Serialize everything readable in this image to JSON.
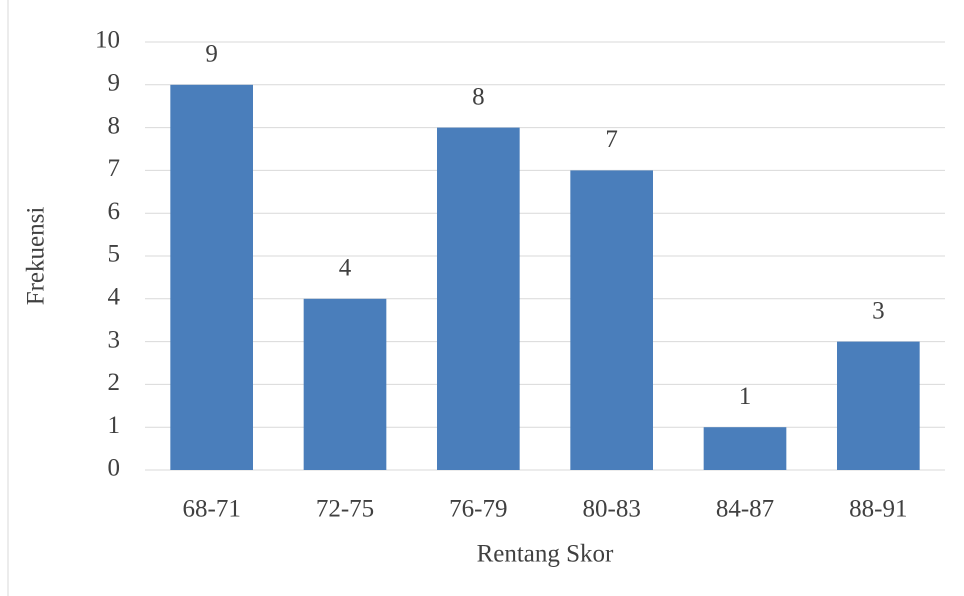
{
  "chart_data": {
    "type": "bar",
    "categories": [
      "68-71",
      "72-75",
      "76-79",
      "80-83",
      "84-87",
      "88-91"
    ],
    "values": [
      9,
      4,
      8,
      7,
      1,
      3
    ],
    "color": "#4a7ebb",
    "xlabel": "Rentang Skor",
    "ylabel": "Frekuensi",
    "ylim": [
      0,
      10
    ],
    "yticks": [
      0,
      1,
      2,
      3,
      4,
      5,
      6,
      7,
      8,
      9,
      10
    ],
    "grid": true,
    "data_labels": true
  }
}
